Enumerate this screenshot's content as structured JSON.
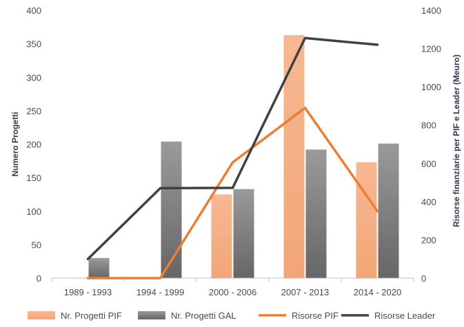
{
  "chart_data": {
    "type": "bar",
    "categories": [
      "1989 - 1993",
      "1994 - 1999",
      "2000 - 2006",
      "2007 - 2013",
      "2014 - 2020"
    ],
    "series": [
      {
        "name": "Nr. Progetti PIF",
        "type": "bar",
        "axis": "left",
        "color": "#f4b183",
        "values": [
          0,
          0,
          125,
          363,
          173
        ]
      },
      {
        "name": "Nr. Progetti GAL",
        "type": "bar",
        "axis": "left",
        "color": "#7f7f7f",
        "values": [
          30,
          204,
          133,
          192,
          201
        ]
      },
      {
        "name": "Risorse PIF",
        "type": "line",
        "axis": "right",
        "color": "#ed7d31",
        "values": [
          0,
          0,
          605,
          890,
          350
        ]
      },
      {
        "name": "Risorse Leader",
        "type": "line",
        "axis": "right",
        "color": "#404040",
        "values": [
          100,
          470,
          472,
          1255,
          1220
        ]
      }
    ],
    "ylabel": "Numero Progetti",
    "ylim": [
      0,
      400
    ],
    "yticks": [
      "0",
      "50",
      "100",
      "150",
      "200",
      "250",
      "300",
      "350",
      "400"
    ],
    "y2label": "Risorse finanziarie per PIF e Leader (Meuro)",
    "y2lim": [
      0,
      1400
    ],
    "y2ticks": [
      "0",
      "200",
      "400",
      "600",
      "800",
      "1000",
      "1200",
      "1400"
    ],
    "grid": false,
    "legend_position": "bottom"
  }
}
